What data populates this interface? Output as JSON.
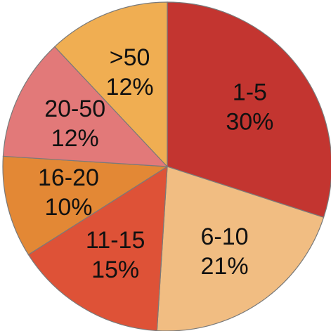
{
  "chart_data": {
    "type": "pie",
    "title": "",
    "start_angle_deg": -90,
    "direction": "clockwise",
    "slices": [
      {
        "category": "1-5",
        "value": 30,
        "percent_label": "30%",
        "color": "#C33530"
      },
      {
        "category": "6-10",
        "value": 21,
        "percent_label": "21%",
        "color": "#F1BD82"
      },
      {
        "category": "11-15",
        "value": 15,
        "percent_label": "15%",
        "color": "#DE5237"
      },
      {
        "category": "16-20",
        "value": 10,
        "percent_label": "10%",
        "color": "#E38835"
      },
      {
        "category": "20-50",
        "value": 12,
        "percent_label": "12%",
        "color": "#E27979"
      },
      {
        "category": ">50",
        "value": 12,
        "percent_label": "12%",
        "color": "#F0AE52"
      }
    ]
  }
}
